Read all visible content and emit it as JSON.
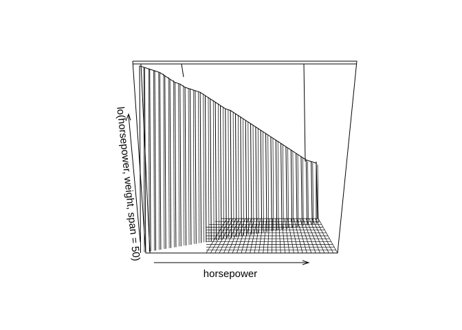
{
  "chart_data": {
    "type": "perspective-surface",
    "title": "",
    "xlabel": "horsepower",
    "ylabel": "lo(horsepower, weight, span = 50)",
    "zlabel": "",
    "grid": false,
    "legend": "none",
    "surface_profile": [
      0.98,
      0.97,
      0.96,
      0.95,
      0.94,
      0.92,
      0.9,
      0.88,
      0.87,
      0.85,
      0.84,
      0.83,
      0.82,
      0.8,
      0.78,
      0.76,
      0.74,
      0.72,
      0.71,
      0.69,
      0.67,
      0.65,
      0.63,
      0.61,
      0.59,
      0.57,
      0.55,
      0.53,
      0.51,
      0.49,
      0.47,
      0.45,
      0.43,
      0.41,
      0.4,
      0.39
    ]
  }
}
